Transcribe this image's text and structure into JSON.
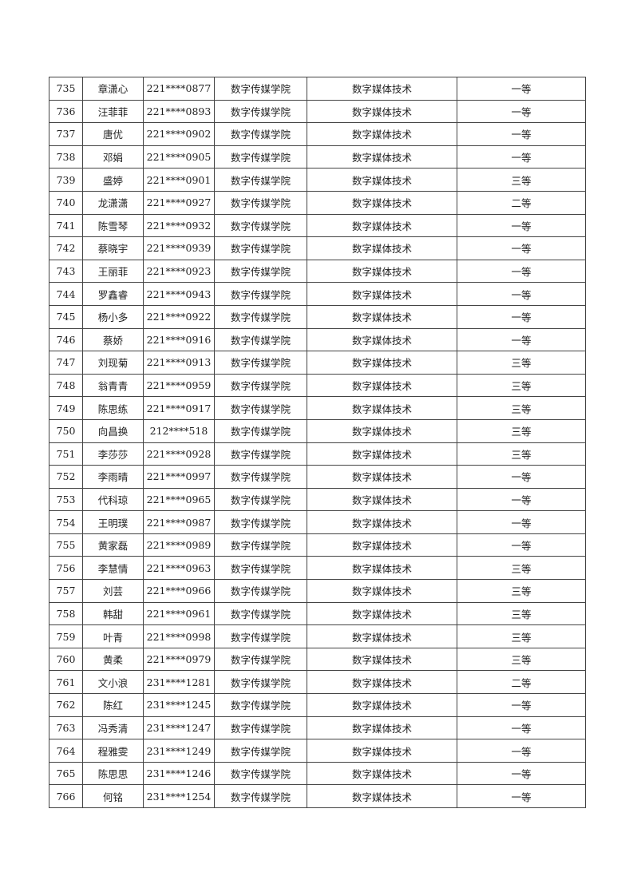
{
  "table": {
    "rows": [
      [
        "735",
        "章潇心",
        "221****0877",
        "数字传媒学院",
        "数字媒体技术",
        "一等"
      ],
      [
        "736",
        "汪菲菲",
        "221****0893",
        "数字传媒学院",
        "数字媒体技术",
        "一等"
      ],
      [
        "737",
        "唐优",
        "221****0902",
        "数字传媒学院",
        "数字媒体技术",
        "一等"
      ],
      [
        "738",
        "邓娟",
        "221****0905",
        "数字传媒学院",
        "数字媒体技术",
        "一等"
      ],
      [
        "739",
        "盛婷",
        "221****0901",
        "数字传媒学院",
        "数字媒体技术",
        "三等"
      ],
      [
        "740",
        "龙潇潇",
        "221****0927",
        "数字传媒学院",
        "数字媒体技术",
        "二等"
      ],
      [
        "741",
        "陈雪琴",
        "221****0932",
        "数字传媒学院",
        "数字媒体技术",
        "一等"
      ],
      [
        "742",
        "蔡晓宇",
        "221****0939",
        "数字传媒学院",
        "数字媒体技术",
        "一等"
      ],
      [
        "743",
        "王丽菲",
        "221****0923",
        "数字传媒学院",
        "数字媒体技术",
        "一等"
      ],
      [
        "744",
        "罗鑫睿",
        "221****0943",
        "数字传媒学院",
        "数字媒体技术",
        "一等"
      ],
      [
        "745",
        "杨小多",
        "221****0922",
        "数字传媒学院",
        "数字媒体技术",
        "一等"
      ],
      [
        "746",
        "蔡娇",
        "221****0916",
        "数字传媒学院",
        "数字媒体技术",
        "一等"
      ],
      [
        "747",
        "刘现菊",
        "221****0913",
        "数字传媒学院",
        "数字媒体技术",
        "三等"
      ],
      [
        "748",
        "翁青青",
        "221****0959",
        "数字传媒学院",
        "数字媒体技术",
        "三等"
      ],
      [
        "749",
        "陈思练",
        "221****0917",
        "数字传媒学院",
        "数字媒体技术",
        "三等"
      ],
      [
        "750",
        "向昌换",
        "212****518",
        "数字传媒学院",
        "数字媒体技术",
        "三等"
      ],
      [
        "751",
        "李莎莎",
        "221****0928",
        "数字传媒学院",
        "数字媒体技术",
        "三等"
      ],
      [
        "752",
        "李雨晴",
        "221****0997",
        "数字传媒学院",
        "数字媒体技术",
        "一等"
      ],
      [
        "753",
        "代科琼",
        "221****0965",
        "数字传媒学院",
        "数字媒体技术",
        "一等"
      ],
      [
        "754",
        "王明璞",
        "221****0987",
        "数字传媒学院",
        "数字媒体技术",
        "一等"
      ],
      [
        "755",
        "黄家磊",
        "221****0989",
        "数字传媒学院",
        "数字媒体技术",
        "一等"
      ],
      [
        "756",
        "李慧情",
        "221****0963",
        "数字传媒学院",
        "数字媒体技术",
        "三等"
      ],
      [
        "757",
        "刘芸",
        "221****0966",
        "数字传媒学院",
        "数字媒体技术",
        "三等"
      ],
      [
        "758",
        "韩甜",
        "221****0961",
        "数字传媒学院",
        "数字媒体技术",
        "三等"
      ],
      [
        "759",
        "叶青",
        "221****0998",
        "数字传媒学院",
        "数字媒体技术",
        "三等"
      ],
      [
        "760",
        "黄柔",
        "221****0979",
        "数字传媒学院",
        "数字媒体技术",
        "三等"
      ],
      [
        "761",
        "文小浪",
        "231****1281",
        "数字传媒学院",
        "数字媒体技术",
        "二等"
      ],
      [
        "762",
        "陈红",
        "231****1245",
        "数字传媒学院",
        "数字媒体技术",
        "一等"
      ],
      [
        "763",
        "冯秀清",
        "231****1247",
        "数字传媒学院",
        "数字媒体技术",
        "一等"
      ],
      [
        "764",
        "程雅雯",
        "231****1249",
        "数字传媒学院",
        "数字媒体技术",
        "一等"
      ],
      [
        "765",
        "陈思思",
        "231****1246",
        "数字传媒学院",
        "数字媒体技术",
        "一等"
      ],
      [
        "766",
        "何铭",
        "231****1254",
        "数字传媒学院",
        "数字媒体技术",
        "一等"
      ]
    ]
  }
}
